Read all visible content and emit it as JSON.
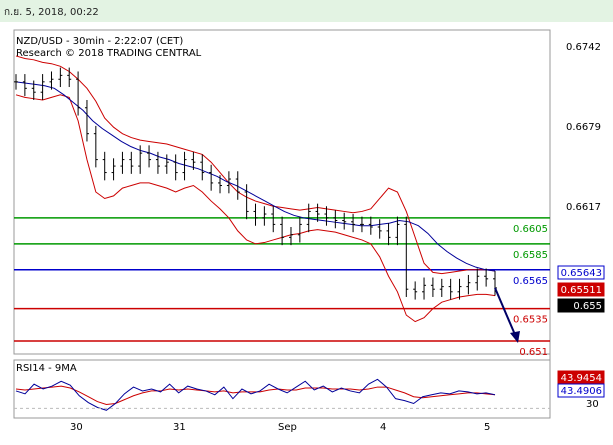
{
  "window": {
    "datetime": "ก.ย. 5, 2018, 00:22"
  },
  "chart_data": [
    {
      "type": "line",
      "title": "NZD/USD - 30min - 2:22:07 (CET)",
      "subtitle": "Research © 2018 TRADING CENTRAL",
      "y_tick_labels": [
        "0.6742",
        "0.6679",
        "0.6617"
      ],
      "x_tick_labels": [
        "30",
        "31",
        "Sep",
        "4",
        "5"
      ],
      "ylim": [
        0.65,
        0.675
      ],
      "levels": [
        {
          "label": "0.6605",
          "value": 0.6605,
          "color": "#009900"
        },
        {
          "label": "0.6585",
          "value": 0.6585,
          "color": "#009900"
        },
        {
          "label": "0.6565",
          "value": 0.6565,
          "color": "#0000cc"
        },
        {
          "label": "0.6535",
          "value": 0.6535,
          "color": "#cc0000"
        },
        {
          "label": "0.651",
          "value": 0.651,
          "color": "#cc0000"
        }
      ],
      "price_tags": [
        {
          "label": "0.65643",
          "value": 0.65643,
          "style": "blue"
        },
        {
          "label": "0.65511",
          "value": 0.65511,
          "style": "red"
        },
        {
          "label": "0.655",
          "value": 0.655,
          "style": "black"
        }
      ],
      "price_close": [
        0.671,
        0.6705,
        0.6702,
        0.671,
        0.6712,
        0.6715,
        0.6712,
        0.669,
        0.667,
        0.665,
        0.664,
        0.6645,
        0.665,
        0.6645,
        0.6655,
        0.665,
        0.6645,
        0.6648,
        0.664,
        0.665,
        0.6648,
        0.664,
        0.6632,
        0.663,
        0.6635,
        0.6625,
        0.661,
        0.6605,
        0.6608,
        0.66,
        0.659,
        0.6592,
        0.66,
        0.661,
        0.6608,
        0.6605,
        0.6603,
        0.6602,
        0.66,
        0.66,
        0.6598,
        0.6595,
        0.659,
        0.66,
        0.655,
        0.6548,
        0.6553,
        0.655,
        0.6552,
        0.6548,
        0.6552,
        0.6555,
        0.656,
        0.6558,
        0.6551
      ],
      "bollinger_upper": [
        0.673,
        0.6728,
        0.6727,
        0.6725,
        0.6724,
        0.6722,
        0.6718,
        0.6712,
        0.6705,
        0.6695,
        0.6682,
        0.6675,
        0.667,
        0.6667,
        0.6665,
        0.6664,
        0.6663,
        0.6662,
        0.666,
        0.6658,
        0.6656,
        0.6654,
        0.6648,
        0.664,
        0.6632,
        0.6625,
        0.6621,
        0.6618,
        0.6616,
        0.6614,
        0.6613,
        0.6612,
        0.6611,
        0.6612,
        0.6613,
        0.6612,
        0.6611,
        0.661,
        0.6609,
        0.661,
        0.6612,
        0.662,
        0.6628,
        0.6625,
        0.661,
        0.659,
        0.657,
        0.6563,
        0.6562,
        0.6563,
        0.6564,
        0.6565,
        0.6565,
        0.6565,
        0.6564
      ],
      "bollinger_lower": [
        0.67,
        0.6698,
        0.6697,
        0.6696,
        0.6698,
        0.67,
        0.6698,
        0.668,
        0.665,
        0.6625,
        0.662,
        0.6622,
        0.6628,
        0.663,
        0.6632,
        0.6632,
        0.663,
        0.6628,
        0.6625,
        0.6628,
        0.663,
        0.6625,
        0.6618,
        0.6612,
        0.6605,
        0.6595,
        0.6588,
        0.6585,
        0.6586,
        0.6588,
        0.659,
        0.6592,
        0.6593,
        0.6595,
        0.6596,
        0.6595,
        0.6594,
        0.6592,
        0.659,
        0.6588,
        0.6585,
        0.6575,
        0.656,
        0.6548,
        0.653,
        0.6525,
        0.6528,
        0.6535,
        0.654,
        0.6542,
        0.6544,
        0.6545,
        0.6546,
        0.6546,
        0.6545
      ],
      "moving_average": [
        0.671,
        0.6709,
        0.6708,
        0.6707,
        0.6705,
        0.67,
        0.6694,
        0.6688,
        0.668,
        0.6674,
        0.6669,
        0.6664,
        0.666,
        0.6657,
        0.6655,
        0.6652,
        0.665,
        0.6647,
        0.6645,
        0.6643,
        0.664,
        0.6637,
        0.6633,
        0.663,
        0.6626,
        0.6622,
        0.6618,
        0.6614,
        0.661,
        0.6607,
        0.6605,
        0.6604,
        0.6603,
        0.6602,
        0.6601,
        0.66,
        0.6599,
        0.6599,
        0.66,
        0.6601,
        0.6603,
        0.6602,
        0.6599,
        0.6593,
        0.6585,
        0.6579,
        0.6574,
        0.657,
        0.6567,
        0.6565,
        0.6564
      ],
      "projection": {
        "from": 0.6551,
        "to": 0.651
      }
    },
    {
      "type": "line",
      "title": "RSI14 - 9MA",
      "y_tick_labels": [
        "30"
      ],
      "ylim": [
        20,
        80
      ],
      "value_tags": [
        {
          "label": "43.9454",
          "value": 43.9454,
          "style": "red"
        },
        {
          "label": "43.4906",
          "value": 43.4906,
          "style": "blue"
        }
      ],
      "rsi": [
        48,
        45,
        55,
        50,
        53,
        58,
        54,
        43,
        36,
        31,
        28,
        35,
        45,
        52,
        48,
        50,
        47,
        55,
        46,
        53,
        50,
        48,
        44,
        52,
        40,
        50,
        45,
        48,
        55,
        50,
        46,
        52,
        58,
        49,
        53,
        47,
        51,
        48,
        46,
        55,
        60,
        52,
        40,
        38,
        35,
        42,
        44,
        46,
        45,
        48,
        47,
        45,
        46,
        44
      ],
      "rsi_ma": [
        50,
        49,
        50,
        51,
        52,
        53,
        51,
        47,
        42,
        37,
        34,
        35,
        39,
        43,
        46,
        48,
        48,
        50,
        49,
        50,
        49,
        48,
        47,
        48,
        46,
        47,
        47,
        47,
        49,
        50,
        49,
        49,
        51,
        51,
        51,
        50,
        50,
        50,
        49,
        50,
        52,
        52,
        49,
        46,
        42,
        41,
        42,
        43,
        44,
        45,
        46,
        46,
        45,
        44
      ]
    }
  ],
  "colors": {
    "price_bars": "#000000",
    "bollinger": "#cc0000",
    "moving_average": "#000099",
    "rsi": "#000099",
    "rsi_ma": "#cc0000",
    "projection_arrow": "#000066"
  }
}
